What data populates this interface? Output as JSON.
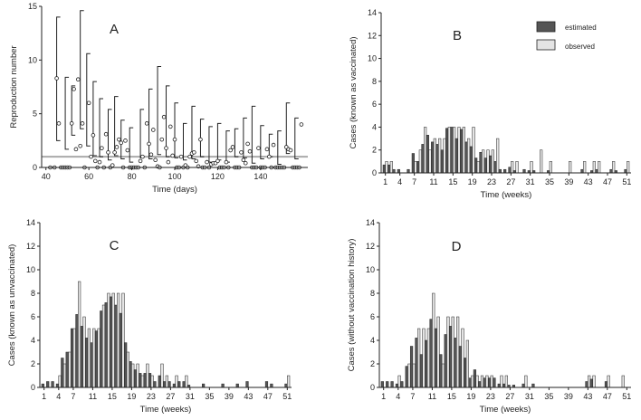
{
  "figure": {
    "legend": {
      "estimated_label": "estimated",
      "observed_label": "observed",
      "estimated_color": "#555555",
      "observed_color": "#e4e4e4"
    }
  },
  "chart_data": [
    {
      "panel": "A",
      "type": "scatter",
      "title": "",
      "xlabel": "Time (days)",
      "ylabel": "Reproduction number",
      "xlim": [
        38,
        162
      ],
      "ylim": [
        0,
        15
      ],
      "xticks": [
        40,
        60,
        80,
        100,
        120,
        140
      ],
      "yticks": [
        0,
        5,
        10,
        15
      ],
      "threshold": 1,
      "threshold_color": "#aaaaaa",
      "points": [
        [
          42,
          0
        ],
        [
          44,
          0
        ],
        [
          45,
          8.3
        ],
        [
          46,
          4.1
        ],
        [
          47,
          0
        ],
        [
          48,
          0
        ],
        [
          49,
          0
        ],
        [
          50,
          0
        ],
        [
          51,
          0
        ],
        [
          52,
          4.1
        ],
        [
          53,
          7.3
        ],
        [
          54,
          1.7
        ],
        [
          55,
          8.2
        ],
        [
          56,
          2.0
        ],
        [
          57,
          4.1
        ],
        [
          58,
          0
        ],
        [
          60,
          6.0
        ],
        [
          61,
          1.0
        ],
        [
          62,
          3.0
        ],
        [
          63,
          0.6
        ],
        [
          64,
          0
        ],
        [
          65,
          0.5
        ],
        [
          66,
          1.8
        ],
        [
          67,
          0
        ],
        [
          68,
          3.1
        ],
        [
          69,
          1.4
        ],
        [
          70,
          0
        ],
        [
          71,
          0.2
        ],
        [
          72,
          1.4
        ],
        [
          73,
          1.9
        ],
        [
          74,
          2.6
        ],
        [
          75,
          2.3
        ],
        [
          76,
          0
        ],
        [
          77,
          2.5
        ],
        [
          78,
          1.6
        ],
        [
          79,
          0
        ],
        [
          80,
          0
        ],
        [
          81,
          0
        ],
        [
          82,
          0
        ],
        [
          83,
          0
        ],
        [
          84,
          0.6
        ],
        [
          85,
          1.0
        ],
        [
          86,
          0
        ],
        [
          87,
          4.1
        ],
        [
          88,
          2.2
        ],
        [
          89,
          1.2
        ],
        [
          90,
          3.5
        ],
        [
          91,
          0.7
        ],
        [
          92,
          0.1
        ],
        [
          93,
          0
        ],
        [
          94,
          2.6
        ],
        [
          95,
          4.7
        ],
        [
          96,
          1.8
        ],
        [
          97,
          0.5
        ],
        [
          98,
          3.8
        ],
        [
          99,
          1.1
        ],
        [
          100,
          2.6
        ],
        [
          101,
          0
        ],
        [
          102,
          0
        ],
        [
          103,
          1.0
        ],
        [
          104,
          0
        ],
        [
          105,
          0.2
        ],
        [
          106,
          0
        ],
        [
          107,
          1.0
        ],
        [
          108,
          1.3
        ],
        [
          109,
          1.4
        ],
        [
          110,
          0.6
        ],
        [
          111,
          0.1
        ],
        [
          112,
          2.6
        ],
        [
          113,
          0
        ],
        [
          114,
          0
        ],
        [
          115,
          0.5
        ],
        [
          116,
          0
        ],
        [
          117,
          0.3
        ],
        [
          118,
          0.4
        ],
        [
          119,
          0.4
        ],
        [
          120,
          0.6
        ],
        [
          121,
          0
        ],
        [
          122,
          0
        ],
        [
          123,
          0
        ],
        [
          124,
          0.5
        ],
        [
          125,
          0
        ],
        [
          126,
          1.6
        ],
        [
          127,
          1.9
        ],
        [
          128,
          0
        ],
        [
          129,
          0
        ],
        [
          130,
          0
        ],
        [
          131,
          1.4
        ],
        [
          132,
          0.7
        ],
        [
          133,
          0.4
        ],
        [
          134,
          2.2
        ],
        [
          135,
          1.5
        ],
        [
          136,
          0
        ],
        [
          137,
          0
        ],
        [
          138,
          0
        ],
        [
          139,
          1.8
        ],
        [
          140,
          0
        ],
        [
          141,
          0
        ],
        [
          142,
          0
        ],
        [
          143,
          1.7
        ],
        [
          144,
          1.0
        ],
        [
          145,
          0
        ],
        [
          146,
          2.1
        ],
        [
          147,
          0
        ],
        [
          148,
          0
        ],
        [
          149,
          0
        ],
        [
          150,
          0
        ],
        [
          151,
          0
        ],
        [
          152,
          1.9
        ],
        [
          153,
          1.7
        ],
        [
          154,
          1.6
        ],
        [
          155,
          0
        ],
        [
          156,
          0
        ],
        [
          157,
          0
        ],
        [
          158,
          0
        ],
        [
          159,
          4.0
        ]
      ],
      "intervals": [
        [
          45,
          2.5,
          14.0
        ],
        [
          49,
          1.7,
          8.4
        ],
        [
          52,
          3.0,
          7.6
        ],
        [
          56,
          3.6,
          14.6
        ],
        [
          59,
          2.0,
          10.6
        ],
        [
          62,
          1.1,
          8.0
        ],
        [
          65,
          1.0,
          6.4
        ],
        [
          69,
          0.7,
          5.4
        ],
        [
          72,
          1.1,
          6.6
        ],
        [
          75,
          0.8,
          4.4
        ],
        [
          79,
          0.5,
          3.7
        ],
        [
          84,
          0.9,
          5.4
        ],
        [
          88,
          0.8,
          7.3
        ],
        [
          92,
          1.2,
          9.4
        ],
        [
          96,
          1.0,
          7.6
        ],
        [
          100,
          0.9,
          6.0
        ],
        [
          104,
          0.7,
          4.1
        ],
        [
          108,
          0.8,
          5.7
        ],
        [
          112,
          1.0,
          4.5
        ],
        [
          116,
          0.5,
          3.8
        ],
        [
          120,
          0.7,
          4.1
        ],
        [
          124,
          0.5,
          3.4
        ],
        [
          128,
          1.0,
          3.6
        ],
        [
          132,
          0.9,
          4.6
        ],
        [
          136,
          0.4,
          5.7
        ],
        [
          140,
          0.8,
          3.9
        ],
        [
          144,
          1.0,
          3.1
        ],
        [
          148,
          0.3,
          3.4
        ],
        [
          152,
          1.3,
          6.0
        ],
        [
          156,
          0.8,
          4.6
        ]
      ]
    },
    {
      "panel": "B",
      "type": "bar",
      "title": "",
      "xlabel": "Time (weeks)",
      "ylabel": "Cases (known as vaccinated)",
      "ylim": [
        0,
        14
      ],
      "yticks": [
        0,
        2,
        4,
        6,
        8,
        10,
        12,
        14
      ],
      "xticks": [
        1,
        4,
        7,
        11,
        15,
        19,
        23,
        27,
        31,
        35,
        39,
        43,
        47,
        51
      ],
      "weeks": [
        1,
        2,
        3,
        4,
        5,
        6,
        7,
        8,
        9,
        10,
        11,
        12,
        13,
        14,
        15,
        16,
        17,
        18,
        19,
        20,
        21,
        22,
        23,
        24,
        25,
        26,
        27,
        28,
        29,
        30,
        31,
        32,
        33,
        34,
        35,
        36,
        37,
        38,
        39,
        40,
        41,
        42,
        43,
        44,
        45,
        46,
        47,
        48,
        49,
        50,
        51
      ],
      "series": [
        {
          "name": "estimated",
          "values": [
            0.7,
            0.7,
            0.3,
            0.3,
            0,
            0.3,
            1.7,
            1.0,
            2.5,
            3.3,
            2.7,
            2.5,
            2.0,
            3.9,
            4.0,
            3.0,
            3.8,
            2.7,
            2.3,
            1.3,
            1.8,
            1.3,
            1.5,
            1.0,
            0.3,
            0.3,
            0.5,
            0.2,
            0,
            0.3,
            0.2,
            0.2,
            0,
            0,
            0.2,
            0,
            0,
            0,
            0,
            0,
            0,
            0.3,
            0,
            0.2,
            0.3,
            0,
            0,
            0.3,
            0.2,
            0,
            0.3
          ]
        },
        {
          "name": "observed",
          "values": [
            1,
            1,
            0,
            0,
            0,
            0,
            1,
            2,
            4,
            2,
            3,
            3,
            3,
            4,
            4,
            4,
            4,
            3,
            4,
            1,
            2,
            2,
            2,
            3,
            0,
            0,
            1,
            1,
            0,
            0,
            1,
            0,
            2,
            0,
            1,
            0,
            0,
            0,
            1,
            0,
            0,
            1,
            0,
            1,
            1,
            0,
            0,
            1,
            0,
            0,
            1
          ]
        }
      ]
    },
    {
      "panel": "C",
      "type": "bar",
      "title": "",
      "xlabel": "Time (weeks)",
      "ylabel": "Cases (known as unvaccinated)",
      "ylim": [
        0,
        14
      ],
      "yticks": [
        0,
        2,
        4,
        6,
        8,
        10,
        12,
        14
      ],
      "xticks": [
        1,
        4,
        7,
        11,
        15,
        19,
        23,
        27,
        31,
        35,
        39,
        43,
        47,
        51
      ],
      "weeks": [
        1,
        2,
        3,
        4,
        5,
        6,
        7,
        8,
        9,
        10,
        11,
        12,
        13,
        14,
        15,
        16,
        17,
        18,
        19,
        20,
        21,
        22,
        23,
        24,
        25,
        26,
        27,
        28,
        29,
        30,
        31,
        32,
        33,
        34,
        35,
        36,
        37,
        38,
        39,
        40,
        41,
        42,
        43,
        44,
        45,
        46,
        47,
        48,
        49,
        50,
        51
      ],
      "series": [
        {
          "name": "estimated",
          "values": [
            0.3,
            0.5,
            0.5,
            0.3,
            2.5,
            3.0,
            5.0,
            6.2,
            5.2,
            4.2,
            3.8,
            4.8,
            6.5,
            7.2,
            7.7,
            7.0,
            6.3,
            3.8,
            2.2,
            1.5,
            1.2,
            1.2,
            1.2,
            0.5,
            1.0,
            0.5,
            0.5,
            0.3,
            0.5,
            0.5,
            0.2,
            0,
            0,
            0.3,
            0,
            0,
            0,
            0.3,
            0,
            0,
            0.3,
            0,
            0.5,
            0,
            0,
            0,
            0.5,
            0.3,
            0,
            0,
            0.3
          ]
        },
        {
          "name": "observed",
          "values": [
            0,
            0,
            0,
            1,
            2,
            3,
            5,
            9,
            6,
            5,
            5,
            5,
            7,
            8,
            8,
            8,
            8,
            3,
            2,
            2,
            1,
            2,
            1,
            0,
            2,
            1,
            0,
            1,
            0,
            1,
            0,
            0,
            0,
            0,
            0,
            0,
            0,
            0,
            0,
            0,
            0,
            0,
            0,
            0,
            0,
            0,
            0,
            0,
            0,
            0,
            1
          ]
        }
      ]
    },
    {
      "panel": "D",
      "type": "bar",
      "title": "",
      "xlabel": "Time (weeks)",
      "ylabel": "Cases (without vaccination history)",
      "ylim": [
        0,
        14
      ],
      "yticks": [
        0,
        2,
        4,
        6,
        8,
        10,
        12,
        14
      ],
      "xticks": [
        1,
        4,
        7,
        11,
        15,
        19,
        23,
        27,
        31,
        35,
        39,
        43,
        47,
        51
      ],
      "weeks": [
        1,
        2,
        3,
        4,
        5,
        6,
        7,
        8,
        9,
        10,
        11,
        12,
        13,
        14,
        15,
        16,
        17,
        18,
        19,
        20,
        21,
        22,
        23,
        24,
        25,
        26,
        27,
        28,
        29,
        30,
        31,
        32,
        33,
        34,
        35,
        36,
        37,
        38,
        39,
        40,
        41,
        42,
        43,
        44,
        45,
        46,
        47,
        48,
        49,
        50,
        51
      ],
      "series": [
        {
          "name": "estimated",
          "values": [
            0.5,
            0.5,
            0.5,
            0.3,
            0.5,
            1.8,
            3.5,
            4.2,
            2.8,
            4.0,
            5.8,
            5.0,
            2.8,
            4.5,
            5.2,
            4.2,
            3.5,
            2.5,
            0.8,
            1.5,
            0.5,
            0.8,
            0.8,
            0.8,
            0.3,
            0.3,
            0.2,
            0.2,
            0,
            0.3,
            0,
            0.3,
            0,
            0,
            0,
            0,
            0,
            0,
            0,
            0,
            0,
            0,
            0.5,
            0.7,
            0,
            0,
            0.5,
            0,
            0,
            0,
            0
          ]
        },
        {
          "name": "observed",
          "values": [
            0,
            0,
            0,
            1,
            0,
            2,
            2,
            5,
            5,
            5,
            8,
            6,
            2,
            6,
            6,
            6,
            5,
            4,
            1,
            1,
            1,
            1,
            1,
            0,
            1,
            1,
            0,
            0,
            0,
            1,
            0,
            0,
            0,
            0,
            0,
            0,
            0,
            0,
            0,
            0,
            0,
            0,
            1,
            1,
            0,
            0,
            1,
            0,
            0,
            1,
            0
          ]
        }
      ]
    }
  ]
}
